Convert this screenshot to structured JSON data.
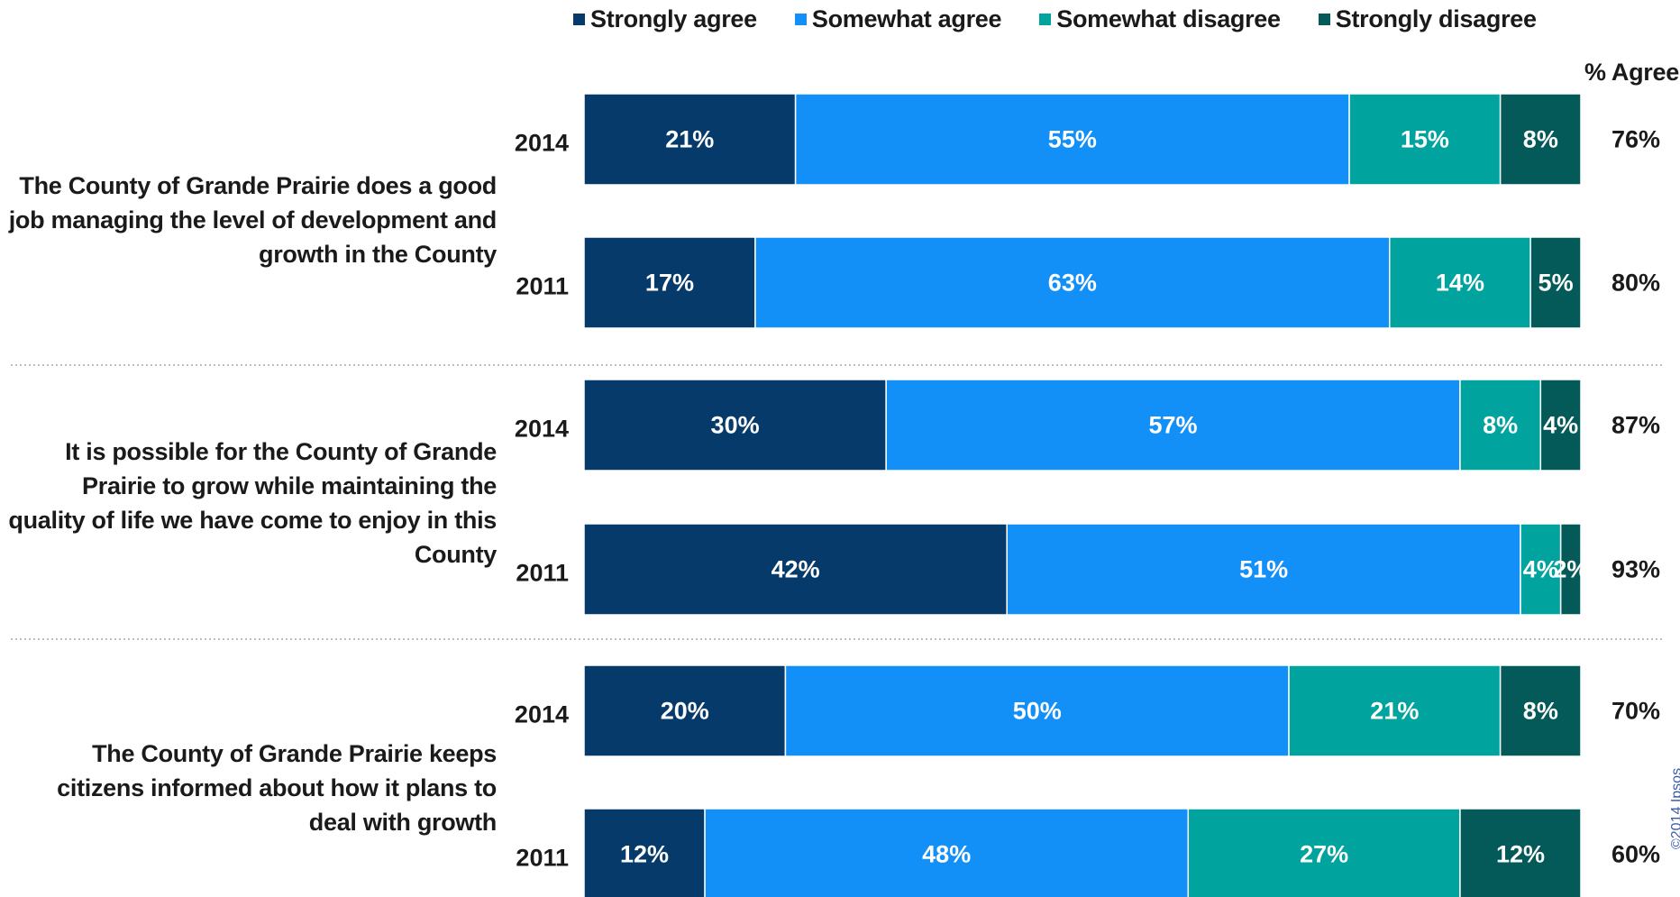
{
  "chart_data": {
    "type": "bar",
    "orientation": "horizontal",
    "stacked": true,
    "legend_position": "top",
    "series": [
      {
        "name": "Strongly agree",
        "color": "#053a6b"
      },
      {
        "name": "Somewhat agree",
        "color": "#138ff8"
      },
      {
        "name": "Somewhat disagree",
        "color": "#00a39e"
      },
      {
        "name": "Strongly disagree",
        "color": "#035a58"
      }
    ],
    "agree_header": "% Agree",
    "groups": [
      {
        "question": "The County of Grande Prairie does a good job managing the level of development and growth in the County",
        "rows": [
          {
            "year": "2014",
            "values": [
              21,
              55,
              15,
              8
            ],
            "labels": [
              "21%",
              "55%",
              "15%",
              "8%"
            ],
            "agree": "76%"
          },
          {
            "year": "2011",
            "values": [
              17,
              63,
              14,
              5
            ],
            "labels": [
              "17%",
              "63%",
              "14%",
              "5%"
            ],
            "agree": "80%"
          }
        ]
      },
      {
        "question": "It is possible for the County of Grande Prairie to grow while maintaining the quality of life we have come to enjoy in this County",
        "rows": [
          {
            "year": "2014",
            "values": [
              30,
              57,
              8,
              4
            ],
            "labels": [
              "30%",
              "57%",
              "8%",
              "4%"
            ],
            "agree": "87%"
          },
          {
            "year": "2011",
            "values": [
              42,
              51,
              4,
              2
            ],
            "labels": [
              "42%",
              "51%",
              "4%",
              "2%"
            ],
            "agree": "93%"
          }
        ]
      },
      {
        "question": "The County of Grande Prairie keeps citizens informed about how it plans to deal with growth",
        "rows": [
          {
            "year": "2014",
            "values": [
              20,
              50,
              21,
              8
            ],
            "labels": [
              "20%",
              "50%",
              "21%",
              "8%"
            ],
            "agree": "70%"
          },
          {
            "year": "2011",
            "values": [
              12,
              48,
              27,
              12
            ],
            "labels": [
              "12%",
              "48%",
              "27%",
              "12%"
            ],
            "agree": "60%"
          }
        ]
      }
    ]
  },
  "copyright": "©2014 Ipsos"
}
